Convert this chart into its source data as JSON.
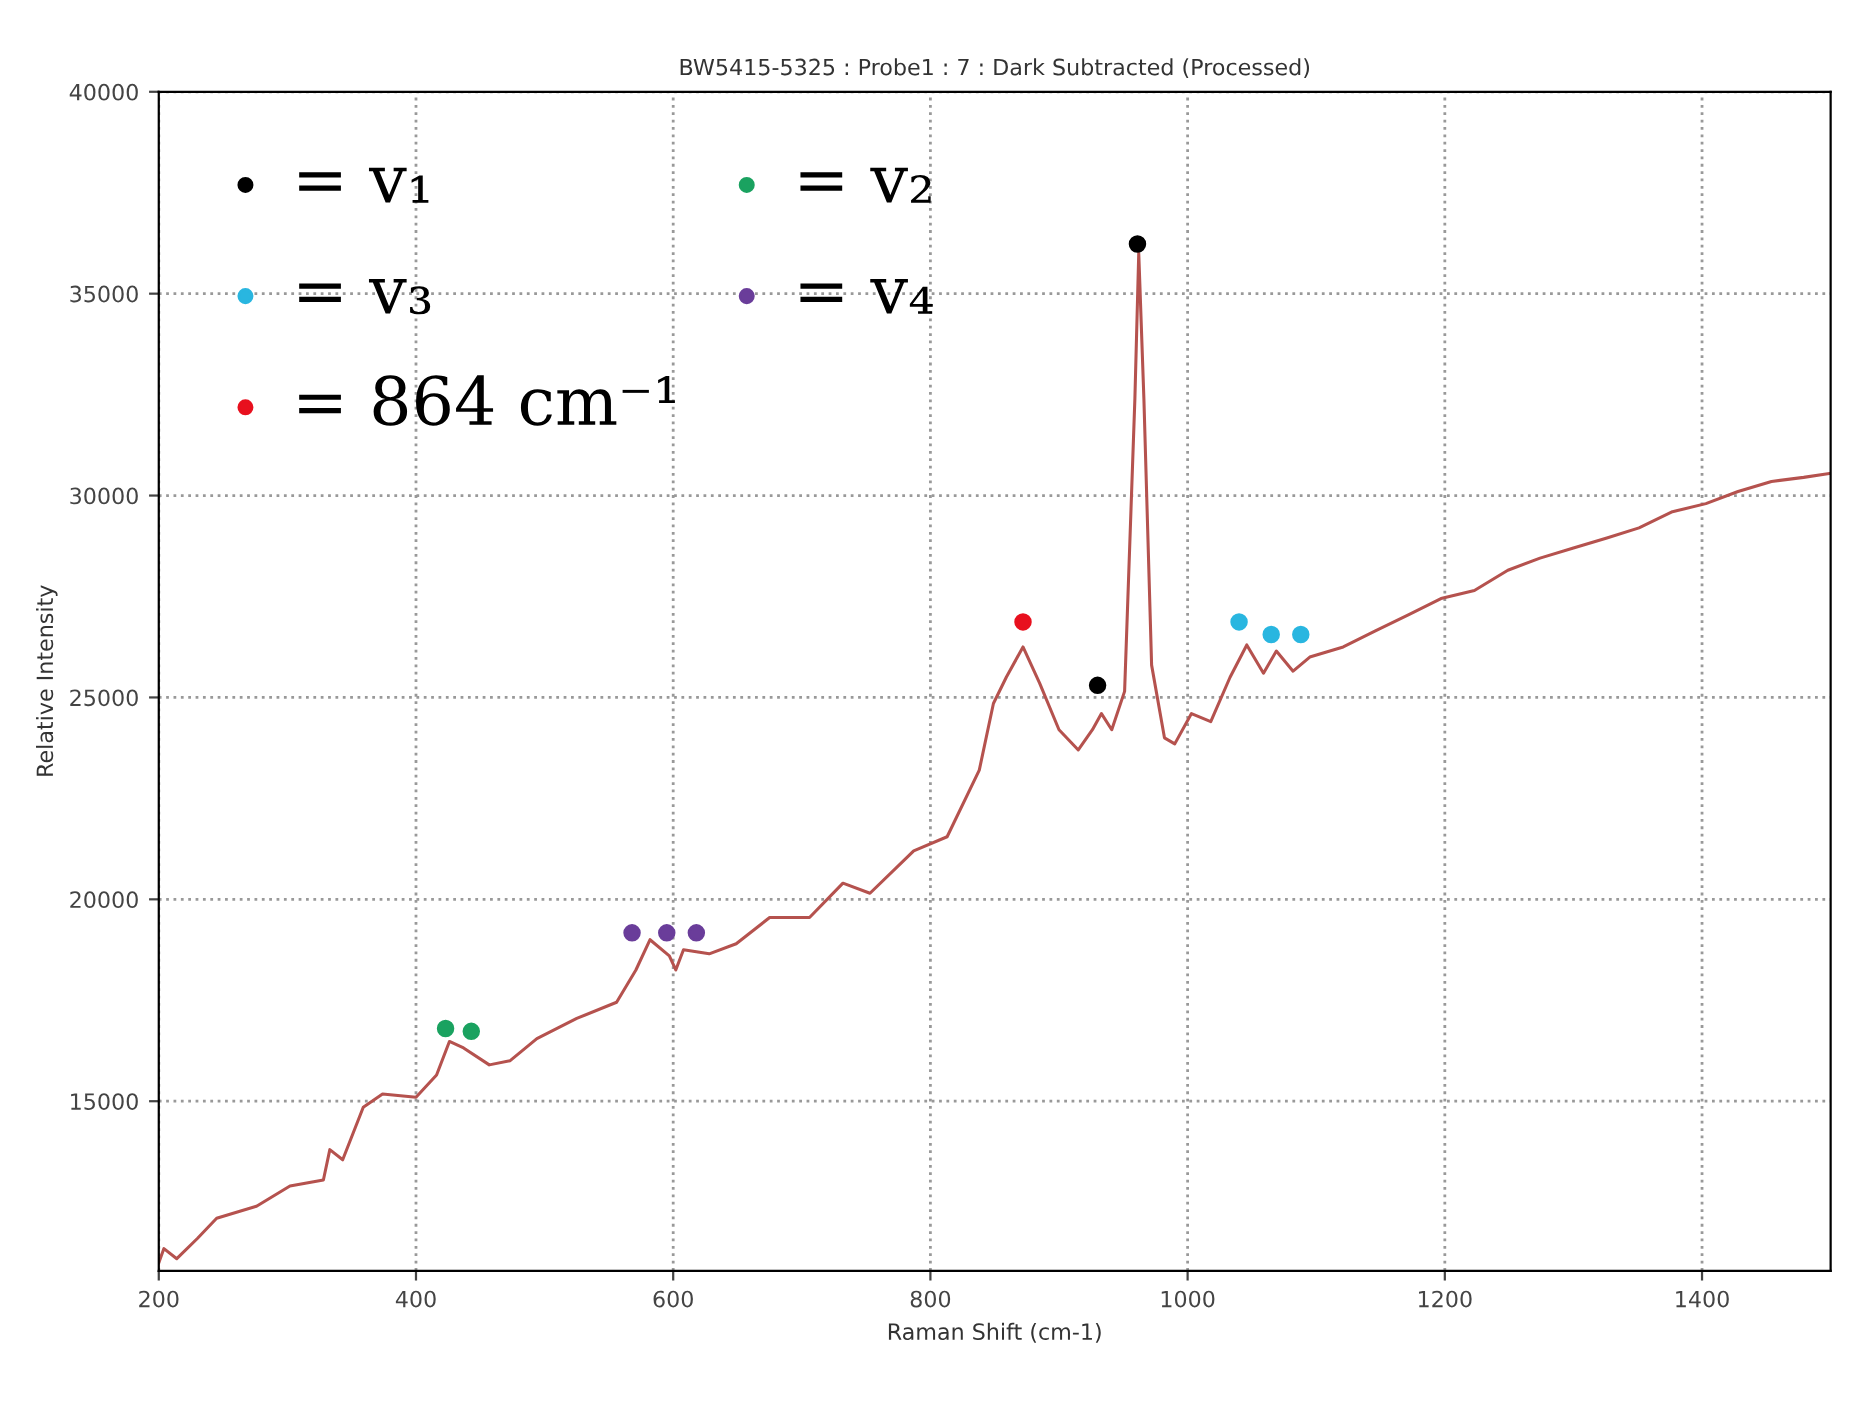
{
  "chart_data": {
    "type": "line",
    "title": "BW5415-5325 : Probe1 : 7 : Dark Subtracted (Processed)",
    "xlabel": "Raman Shift (cm-1)",
    "ylabel": "Relative Intensity",
    "xlim": [
      200,
      1500
    ],
    "ylim": [
      10800,
      40000
    ],
    "xticks": [
      200,
      400,
      600,
      800,
      1000,
      1200,
      1400
    ],
    "yticks": [
      15000,
      20000,
      25000,
      30000,
      35000,
      40000
    ],
    "grid": true,
    "legend": "top left",
    "series": [
      {
        "color": "#b5524e",
        "x": [
          200,
          204,
          214,
          230,
          245,
          276,
          302,
          328,
          333,
          343,
          359,
          374,
          400,
          416,
          426,
          437,
          457,
          473,
          494,
          525,
          556,
          571,
          582,
          597,
          602,
          608,
          628,
          649,
          675,
          706,
          732,
          753,
          779,
          787,
          813,
          838,
          849,
          859,
          872,
          885,
          900,
          915,
          926,
          933,
          941,
          951,
          959,
          962,
          966,
          972,
          982,
          990,
          1003,
          1018,
          1033,
          1046,
          1059,
          1069,
          1082,
          1095,
          1121,
          1146,
          1172,
          1197,
          1223,
          1249,
          1274,
          1300,
          1326,
          1351,
          1377,
          1403,
          1428,
          1454,
          1479,
          1500
        ],
        "values": [
          11000,
          11350,
          11100,
          11600,
          12100,
          12400,
          12900,
          13050,
          13800,
          13550,
          14850,
          15180,
          15100,
          15650,
          16480,
          16320,
          15900,
          16000,
          16550,
          17050,
          17450,
          18250,
          19000,
          18600,
          18250,
          18750,
          18650,
          18900,
          19550,
          19550,
          20400,
          20150,
          20950,
          21200,
          21550,
          23200,
          24850,
          25500,
          26250,
          25350,
          24200,
          23700,
          24200,
          24600,
          24200,
          25150,
          32400,
          36000,
          32400,
          25800,
          24000,
          23850,
          24600,
          24400,
          25500,
          26300,
          25600,
          26150,
          25650,
          26000,
          26250,
          26650,
          27050,
          27450,
          27650,
          28150,
          28450,
          28700,
          28950,
          29200,
          29600,
          29800,
          30100,
          30350,
          30450,
          30550
        ]
      },
      {
        "type": "scatter",
        "name": "= v₁",
        "color": "#000000",
        "x": [
          930,
          961
        ],
        "values": [
          25300,
          36230
        ]
      },
      {
        "type": "scatter",
        "name": "= v₃",
        "color": "#29b6e0",
        "x": [
          1040,
          1065,
          1088
        ],
        "values": [
          26870,
          26560,
          26560
        ]
      },
      {
        "type": "scatter",
        "name": "= 864 cm⁻¹",
        "color": "#e8101e",
        "x": [
          872
        ],
        "values": [
          26870
        ]
      },
      {
        "type": "scatter",
        "name": "= v₂",
        "color": "#1aa260",
        "x": [
          423,
          443
        ],
        "values": [
          16800,
          16730
        ]
      },
      {
        "type": "scatter",
        "name": "= v₄",
        "color": "#6a3d9a",
        "x": [
          568,
          595,
          618
        ],
        "values": [
          19170,
          19170,
          19170
        ]
      }
    ]
  }
}
